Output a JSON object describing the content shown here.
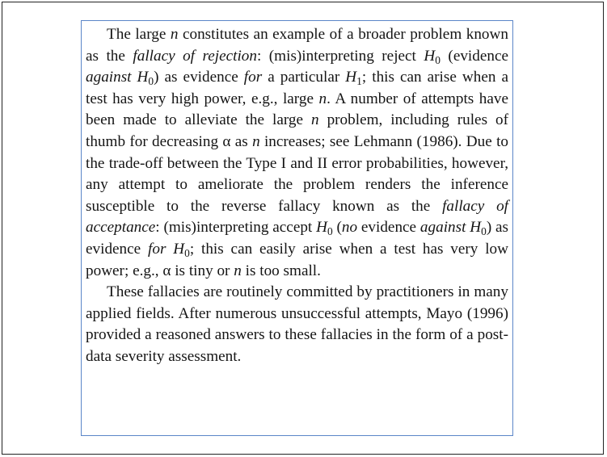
{
  "document": {
    "paragraphs": [
      {
        "segments": [
          {
            "text": "The large ",
            "style": "normal"
          },
          {
            "text": "n",
            "style": "italic"
          },
          {
            "text": " constitutes an example of a broader problem known as the ",
            "style": "normal"
          },
          {
            "text": "fallacy of rejection",
            "style": "italic"
          },
          {
            "text": ": (mis)interpreting reject ",
            "style": "normal"
          },
          {
            "text": "H",
            "style": "italic"
          },
          {
            "text": "0",
            "style": "sub"
          },
          {
            "text": " (evidence ",
            "style": "normal"
          },
          {
            "text": "against",
            "style": "italic"
          },
          {
            "text": " ",
            "style": "normal"
          },
          {
            "text": "H",
            "style": "italic"
          },
          {
            "text": "0",
            "style": "sub"
          },
          {
            "text": ") as evidence ",
            "style": "normal"
          },
          {
            "text": "for",
            "style": "italic"
          },
          {
            "text": " a particular ",
            "style": "normal"
          },
          {
            "text": "H",
            "style": "italic"
          },
          {
            "text": "1",
            "style": "sub"
          },
          {
            "text": "; this can arise when a test has very high power, e.g., large ",
            "style": "normal"
          },
          {
            "text": "n",
            "style": "italic"
          },
          {
            "text": ". A number of attempts have been made to alleviate the large ",
            "style": "normal"
          },
          {
            "text": "n",
            "style": "italic"
          },
          {
            "text": " problem, including rules of thumb for decreasing α as ",
            "style": "normal"
          },
          {
            "text": "n",
            "style": "italic"
          },
          {
            "text": " increases; see Lehmann (1986). Due to the trade-off between the Type I and II error probabilities, however, any attempt to ameliorate the problem renders the inference susceptible to the reverse fallacy known as the ",
            "style": "normal"
          },
          {
            "text": "fallacy of acceptance",
            "style": "italic"
          },
          {
            "text": ": (mis)interpreting accept ",
            "style": "normal"
          },
          {
            "text": "H",
            "style": "italic"
          },
          {
            "text": "0",
            "style": "sub"
          },
          {
            "text": " (",
            "style": "normal"
          },
          {
            "text": "no",
            "style": "italic"
          },
          {
            "text": " evidence ",
            "style": "normal"
          },
          {
            "text": "against",
            "style": "italic"
          },
          {
            "text": " ",
            "style": "normal"
          },
          {
            "text": "H",
            "style": "italic"
          },
          {
            "text": "0",
            "style": "sub"
          },
          {
            "text": ") as evidence ",
            "style": "normal"
          },
          {
            "text": "for",
            "style": "italic"
          },
          {
            "text": " ",
            "style": "normal"
          },
          {
            "text": "H",
            "style": "italic"
          },
          {
            "text": "0",
            "style": "sub"
          },
          {
            "text": "; this can easily arise when a test has very low power; e.g., α is tiny or ",
            "style": "normal"
          },
          {
            "text": "n",
            "style": "italic"
          },
          {
            "text": " is too small.",
            "style": "normal"
          }
        ]
      },
      {
        "segments": [
          {
            "text": "These fallacies are routinely committed by practitioners in many applied fields. After numerous unsuccessful attempts, Mayo (1996) provided a reasoned answers to these fallacies in the form of a post-data severity assessment.",
            "style": "normal"
          }
        ]
      }
    ]
  }
}
